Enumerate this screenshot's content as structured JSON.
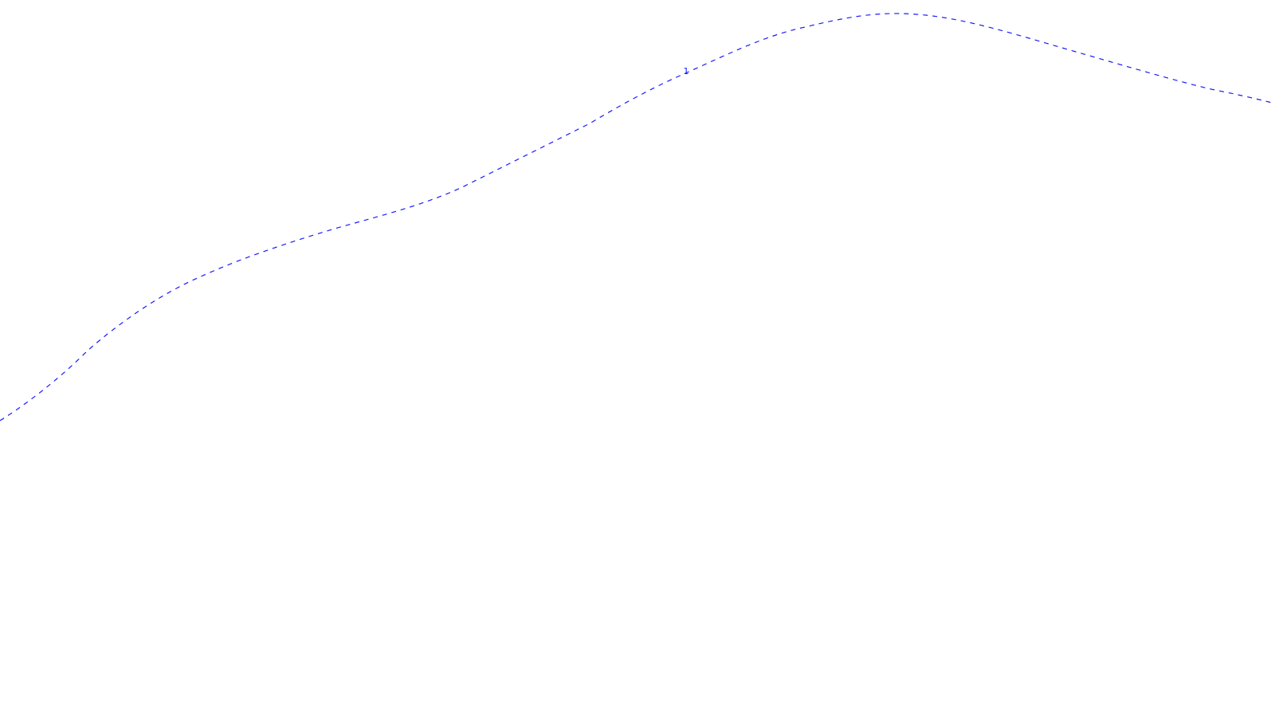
{
  "map": {
    "route": {
      "label": "1",
      "color": "#1a1aff"
    }
  }
}
